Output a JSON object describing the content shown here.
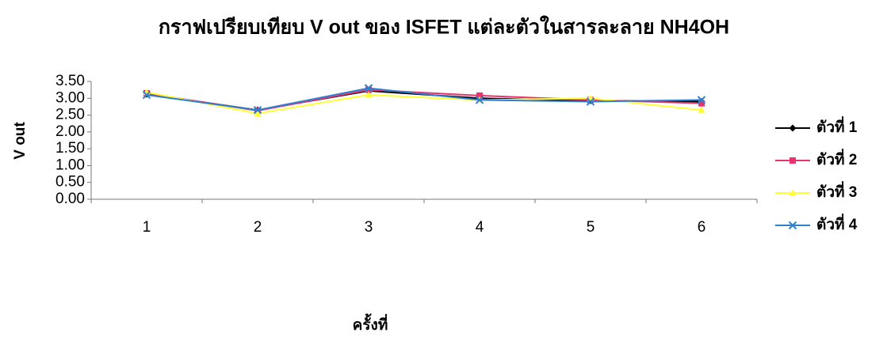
{
  "chart_data": {
    "type": "line",
    "title": "กราฟเปรียบเทียบ V out ของ ISFET แต่ละตัวในสารละลาย NH4OH",
    "x_label": "ครั้งที่",
    "y_label": "V out",
    "categories": [
      "1",
      "2",
      "3",
      "4",
      "5",
      "6"
    ],
    "series": [
      {
        "name": "ตัวที่ 1",
        "color": "#000000",
        "marker": "diamond",
        "values": [
          3.12,
          2.65,
          3.22,
          3.0,
          2.93,
          2.9
        ]
      },
      {
        "name": "ตัวที่ 2",
        "color": "#e8336d",
        "marker": "square",
        "values": [
          3.15,
          2.63,
          3.25,
          3.08,
          2.95,
          2.85
        ]
      },
      {
        "name": "ตัวที่ 3",
        "color": "#ffff33",
        "marker": "triangle",
        "values": [
          3.18,
          2.55,
          3.1,
          2.95,
          3.0,
          2.65
        ]
      },
      {
        "name": "ตัวที่ 4",
        "color": "#2f7fd0",
        "marker": "x",
        "values": [
          3.1,
          2.65,
          3.3,
          2.95,
          2.9,
          2.95
        ]
      }
    ],
    "ylim": [
      0,
      3.5
    ],
    "yticks": [
      {
        "value": 0,
        "label": "0.00"
      },
      {
        "value": 0.5,
        "label": "0.50"
      },
      {
        "value": 1,
        "label": "1.00"
      },
      {
        "value": 1.5,
        "label": "1.50"
      },
      {
        "value": 2,
        "label": "2.00"
      },
      {
        "value": 2.5,
        "label": "2.50"
      },
      {
        "value": 3,
        "label": "3.00"
      },
      {
        "value": 3.5,
        "label": "3.50"
      }
    ],
    "grid": false,
    "legend": "right"
  }
}
